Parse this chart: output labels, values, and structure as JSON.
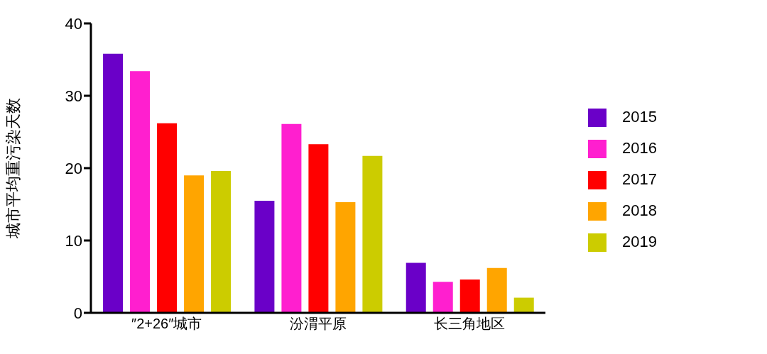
{
  "chart_data": {
    "type": "bar",
    "ylabel": "城市平均重污染天数",
    "categories": [
      "″2+26″城市",
      "汾渭平原",
      "长三角地区"
    ],
    "series": [
      {
        "name": "2015",
        "color": "#6a00c8",
        "values": [
          35.8,
          15.5,
          6.9
        ]
      },
      {
        "name": "2016",
        "color": "#ff1fcf",
        "values": [
          33.4,
          26.1,
          4.3
        ]
      },
      {
        "name": "2017",
        "color": "#ff0000",
        "values": [
          26.2,
          23.3,
          4.6
        ]
      },
      {
        "name": "2018",
        "color": "#ffa500",
        "values": [
          19.0,
          15.3,
          6.2
        ]
      },
      {
        "name": "2019",
        "color": "#cccc00",
        "values": [
          19.6,
          21.7,
          2.1
        ]
      }
    ],
    "ylim": [
      0,
      40
    ],
    "yticks": [
      0,
      10,
      20,
      30,
      40
    ],
    "grid": false,
    "legend": "right"
  }
}
